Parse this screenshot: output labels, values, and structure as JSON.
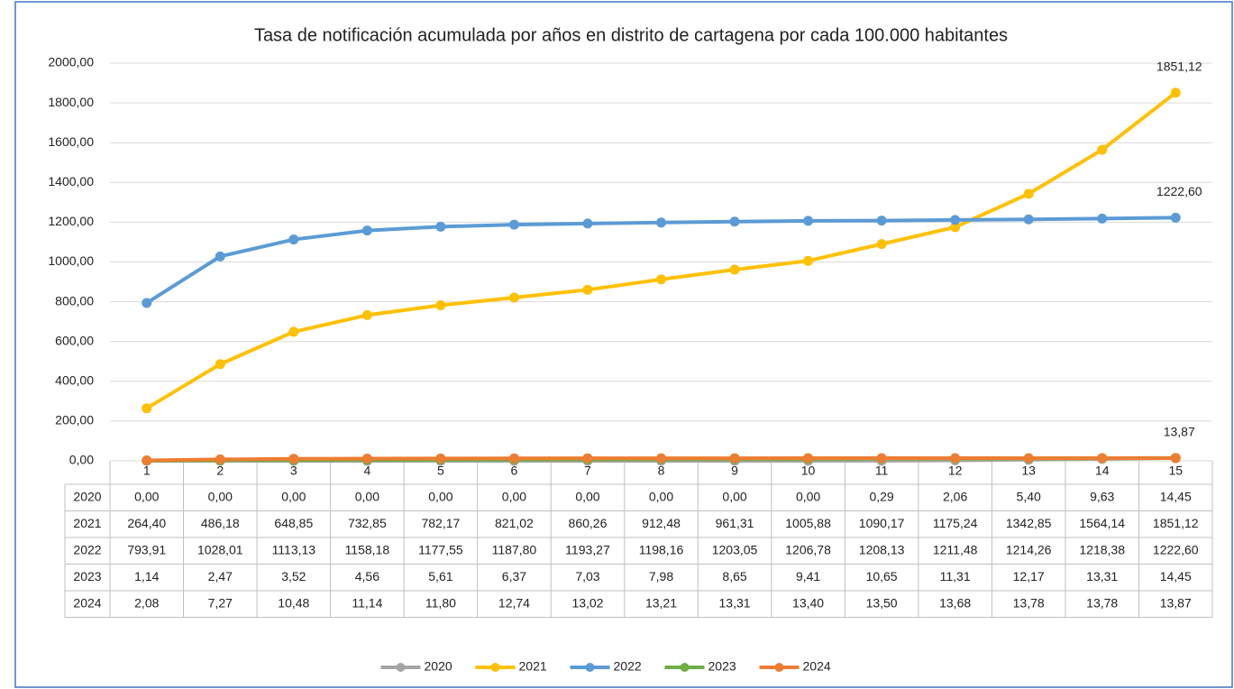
{
  "chart_data": {
    "type": "line",
    "title": "Tasa de notificación acumulada por años en distrito de cartagena por cada 100.000 habitantes",
    "categories": [
      "1",
      "2",
      "3",
      "4",
      "5",
      "6",
      "7",
      "8",
      "9",
      "10",
      "11",
      "12",
      "13",
      "14",
      "15"
    ],
    "ylim": [
      0,
      2000
    ],
    "yticks": [
      {
        "value": 0,
        "label": "0,00"
      },
      {
        "value": 200,
        "label": "200,00"
      },
      {
        "value": 400,
        "label": "400,00"
      },
      {
        "value": 600,
        "label": "600,00"
      },
      {
        "value": 800,
        "label": "800,00"
      },
      {
        "value": 1000,
        "label": "1000,00"
      },
      {
        "value": 1200,
        "label": "1200,00"
      },
      {
        "value": 1400,
        "label": "1400,00"
      },
      {
        "value": 1600,
        "label": "1600,00"
      },
      {
        "value": 1800,
        "label": "1800,00"
      },
      {
        "value": 2000,
        "label": "2000,00"
      }
    ],
    "grid": true,
    "legend": "bottom",
    "series": [
      {
        "name": "2020",
        "color": "#a5a5a5",
        "label_last": false,
        "values": [
          0,
          0,
          0,
          0,
          0,
          0,
          0,
          0,
          0,
          0,
          0.29,
          2.06,
          5.4,
          9.63,
          14.45
        ],
        "value_labels": [
          "0,00",
          "0,00",
          "0,00",
          "0,00",
          "0,00",
          "0,00",
          "0,00",
          "0,00",
          "0,00",
          "0,00",
          "0,29",
          "2,06",
          "5,40",
          "9,63",
          "14,45"
        ]
      },
      {
        "name": "2021",
        "color": "#ffc000",
        "label_last": true,
        "values": [
          264.4,
          486.18,
          648.85,
          732.85,
          782.17,
          821.02,
          860.26,
          912.48,
          961.31,
          1005.88,
          1090.17,
          1175.24,
          1342.85,
          1564.14,
          1851.12
        ],
        "value_labels": [
          "264,40",
          "486,18",
          "648,85",
          "732,85",
          "782,17",
          "821,02",
          "860,26",
          "912,48",
          "961,31",
          "1005,88",
          "1090,17",
          "1175,24",
          "1342,85",
          "1564,14",
          "1851,12"
        ]
      },
      {
        "name": "2022",
        "color": "#5b9bd5",
        "label_last": true,
        "values": [
          793.91,
          1028.01,
          1113.13,
          1158.18,
          1177.55,
          1187.8,
          1193.27,
          1198.16,
          1203.05,
          1206.78,
          1208.13,
          1211.48,
          1214.26,
          1218.38,
          1222.6
        ],
        "value_labels": [
          "793,91",
          "1028,01",
          "1113,13",
          "1158,18",
          "1177,55",
          "1187,80",
          "1193,27",
          "1198,16",
          "1203,05",
          "1206,78",
          "1208,13",
          "1211,48",
          "1214,26",
          "1218,38",
          "1222,60"
        ]
      },
      {
        "name": "2023",
        "color": "#70ad47",
        "label_last": false,
        "values": [
          1.14,
          2.47,
          3.52,
          4.56,
          5.61,
          6.37,
          7.03,
          7.98,
          8.65,
          9.41,
          10.65,
          11.31,
          12.17,
          13.31,
          14.45
        ],
        "value_labels": [
          "1,14",
          "2,47",
          "3,52",
          "4,56",
          "5,61",
          "6,37",
          "7,03",
          "7,98",
          "8,65",
          "9,41",
          "10,65",
          "11,31",
          "12,17",
          "13,31",
          "14,45"
        ]
      },
      {
        "name": "2024",
        "color": "#ed7d31",
        "label_last": true,
        "values": [
          2.08,
          7.27,
          10.48,
          11.14,
          11.8,
          12.74,
          13.02,
          13.21,
          13.31,
          13.4,
          13.5,
          13.68,
          13.78,
          13.78,
          13.87
        ],
        "value_labels": [
          "2,08",
          "7,27",
          "10,48",
          "11,14",
          "11,80",
          "12,74",
          "13,02",
          "13,21",
          "13,31",
          "13,40",
          "13,50",
          "13,68",
          "13,78",
          "13,78",
          "13,87"
        ]
      }
    ]
  }
}
